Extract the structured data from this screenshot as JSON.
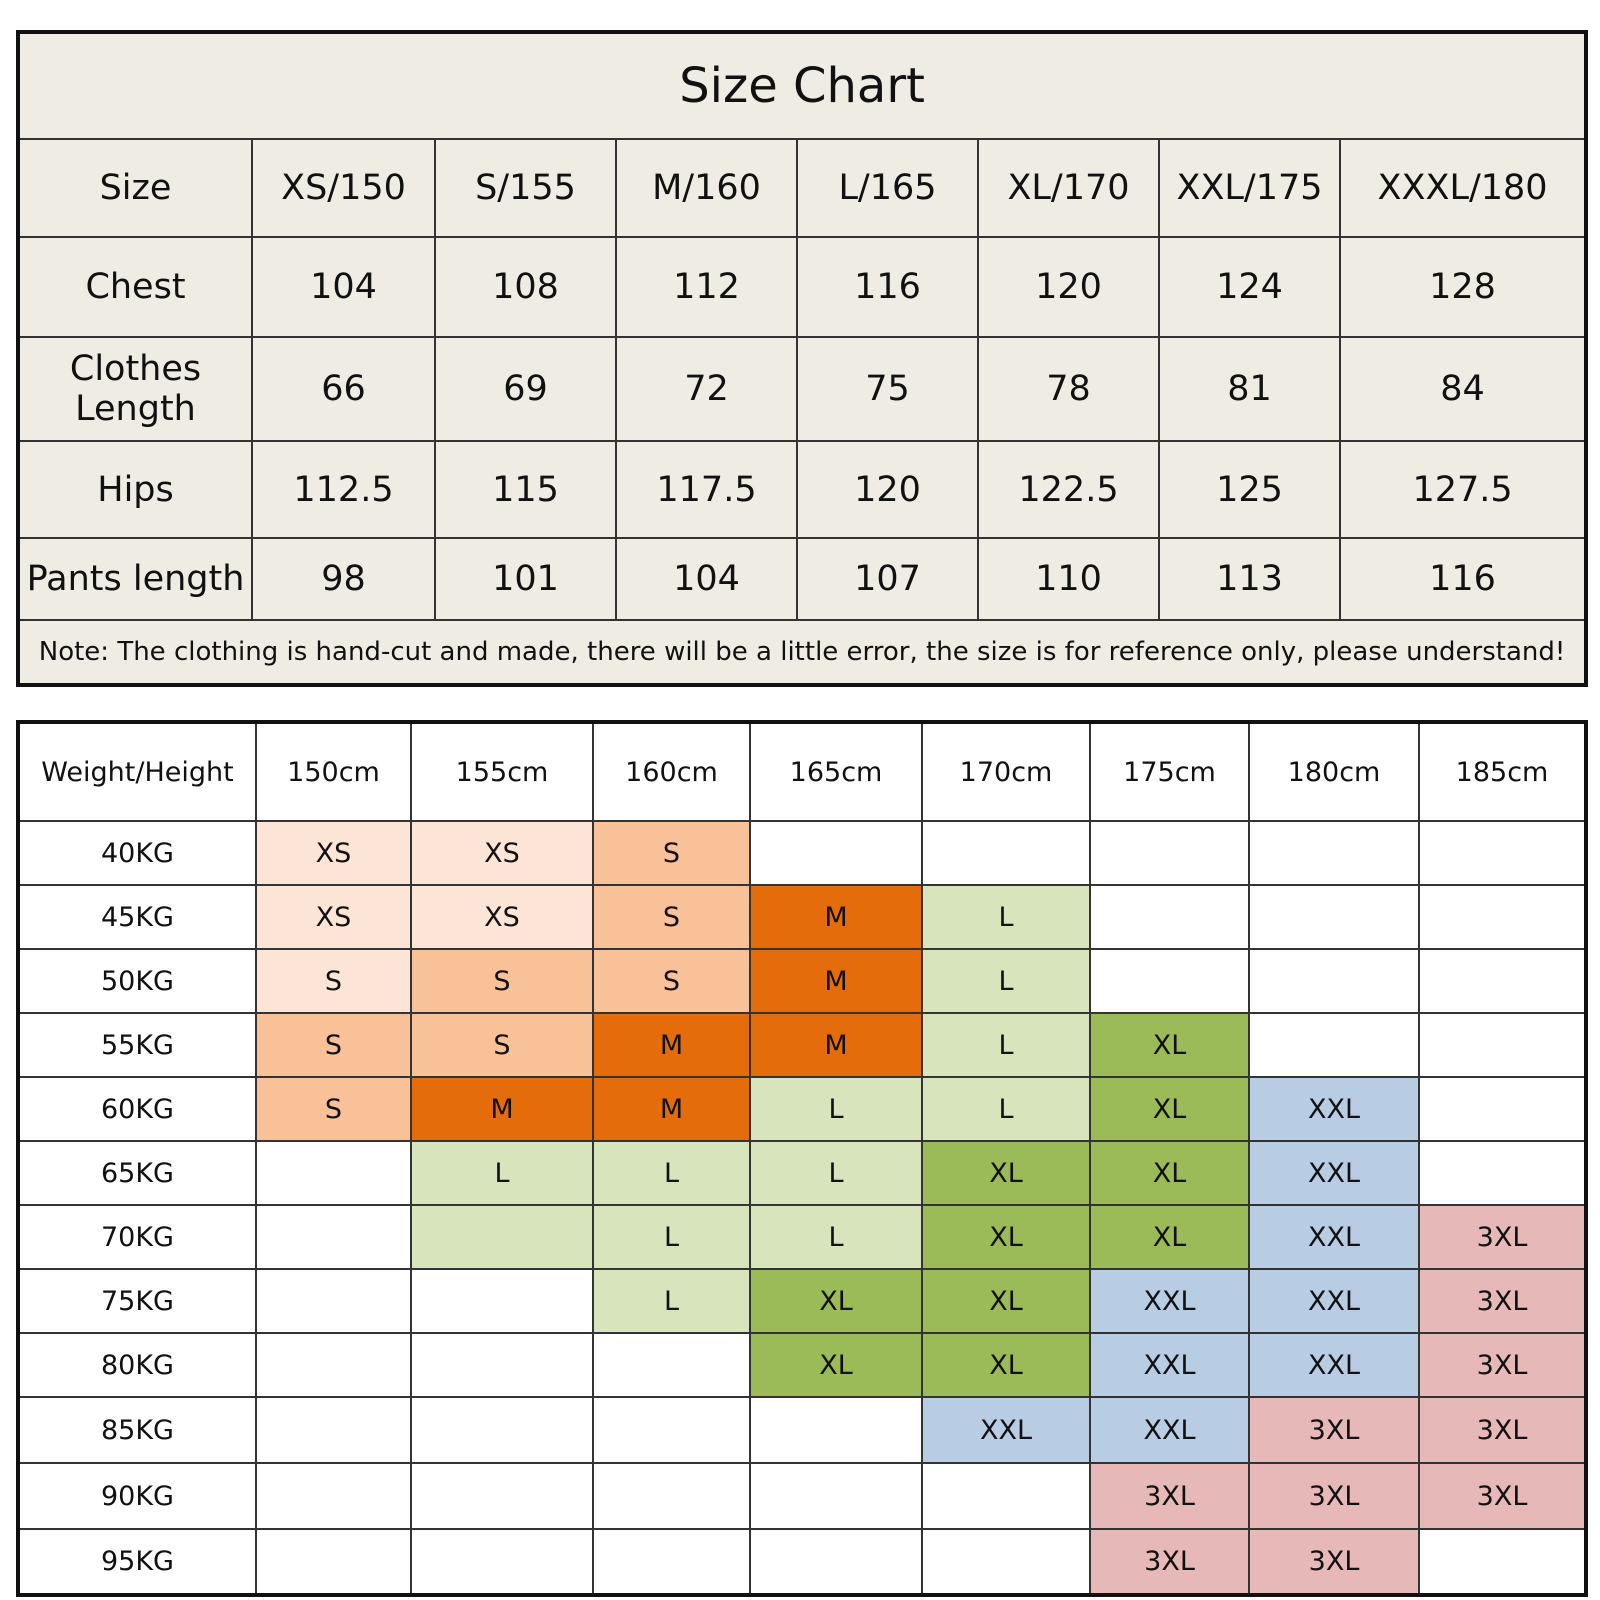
{
  "size_chart": {
    "title": "Size Chart",
    "header": {
      "label": "Size",
      "sizes": [
        "XS/150",
        "S/155",
        "M/160",
        "L/165",
        "XL/170",
        "XXL/175",
        "XXXL/180"
      ]
    },
    "rows": [
      {
        "label": "Chest",
        "values": [
          104,
          108,
          112,
          116,
          120,
          124,
          128
        ]
      },
      {
        "label": "Clothes Length",
        "values": [
          66,
          69,
          72,
          75,
          78,
          81,
          84
        ]
      },
      {
        "label": "Hips",
        "values": [
          112.5,
          115,
          117.5,
          120,
          122.5,
          125,
          127.5
        ]
      },
      {
        "label": "Pants length",
        "values": [
          98,
          101,
          104,
          107,
          110,
          113,
          116
        ]
      }
    ],
    "note": "Note: The clothing is hand-cut and made, there will be a little error, the size is for reference only, please understand!"
  },
  "fit_table": {
    "header": {
      "label": "Weight/Height",
      "heights": [
        "150cm",
        "155cm",
        "160cm",
        "165cm",
        "170cm",
        "175cm",
        "180cm",
        "185cm"
      ]
    },
    "rows": [
      {
        "label": "40KG",
        "cells": [
          {
            "size": "XS",
            "color": "#fce4d6"
          },
          {
            "size": "XS",
            "color": "#fce4d6"
          },
          {
            "size": "S",
            "color": "#f8c197"
          },
          null,
          null,
          null,
          null,
          null
        ]
      },
      {
        "label": "45KG",
        "cells": [
          {
            "size": "XS",
            "color": "#fce4d6"
          },
          {
            "size": "XS",
            "color": "#fce4d6"
          },
          {
            "size": "S",
            "color": "#f8c197"
          },
          {
            "size": "M",
            "color": "#e46c0a"
          },
          {
            "size": "L",
            "color": "#d8e4bc"
          },
          null,
          null,
          null
        ]
      },
      {
        "label": "50KG",
        "cells": [
          {
            "size": "S",
            "color": "#fce4d6"
          },
          {
            "size": "S",
            "color": "#f8c197"
          },
          {
            "size": "S",
            "color": "#f8c197"
          },
          {
            "size": "M",
            "color": "#e46c0a"
          },
          {
            "size": "L",
            "color": "#d8e4bc"
          },
          null,
          null,
          null
        ]
      },
      {
        "label": "55KG",
        "cells": [
          {
            "size": "S",
            "color": "#f8c197"
          },
          {
            "size": "S",
            "color": "#f8c197"
          },
          {
            "size": "M",
            "color": "#e46c0a"
          },
          {
            "size": "M",
            "color": "#e46c0a"
          },
          {
            "size": "L",
            "color": "#d8e4bc"
          },
          {
            "size": "XL",
            "color": "#9bbb59"
          },
          null,
          null
        ]
      },
      {
        "label": "60KG",
        "cells": [
          {
            "size": "S",
            "color": "#f8c197"
          },
          {
            "size": "M",
            "color": "#e46c0a"
          },
          {
            "size": "M",
            "color": "#e46c0a"
          },
          {
            "size": "L",
            "color": "#d8e4bc"
          },
          {
            "size": "L",
            "color": "#d8e4bc"
          },
          {
            "size": "XL",
            "color": "#9bbb59"
          },
          {
            "size": "XXL",
            "color": "#b8cce4"
          },
          null
        ]
      },
      {
        "label": "65KG",
        "cells": [
          null,
          {
            "size": "L",
            "color": "#d8e4bc"
          },
          {
            "size": "L",
            "color": "#d8e4bc"
          },
          {
            "size": "L",
            "color": "#d8e4bc"
          },
          {
            "size": "XL",
            "color": "#9bbb59"
          },
          {
            "size": "XL",
            "color": "#9bbb59"
          },
          {
            "size": "XXL",
            "color": "#b8cce4"
          },
          null
        ]
      },
      {
        "label": "70KG",
        "cells": [
          null,
          {
            "color": "#d8e4bc"
          },
          {
            "size": "L",
            "color": "#d8e4bc"
          },
          {
            "size": "L",
            "color": "#d8e4bc"
          },
          {
            "size": "XL",
            "color": "#9bbb59"
          },
          {
            "size": "XL",
            "color": "#9bbb59"
          },
          {
            "size": "XXL",
            "color": "#b8cce4"
          },
          {
            "size": "3XL",
            "color": "#e6b8b7"
          }
        ]
      },
      {
        "label": "75KG",
        "cells": [
          null,
          null,
          {
            "size": "L",
            "color": "#d8e4bc"
          },
          {
            "size": "XL",
            "color": "#9bbb59"
          },
          {
            "size": "XL",
            "color": "#9bbb59"
          },
          {
            "size": "XXL",
            "color": "#b8cce4"
          },
          {
            "size": "XXL",
            "color": "#b8cce4"
          },
          {
            "size": "3XL",
            "color": "#e6b8b7"
          }
        ]
      },
      {
        "label": "80KG",
        "cells": [
          null,
          null,
          null,
          {
            "size": "XL",
            "color": "#9bbb59"
          },
          {
            "size": "XL",
            "color": "#9bbb59"
          },
          {
            "size": "XXL",
            "color": "#b8cce4"
          },
          {
            "size": "XXL",
            "color": "#b8cce4"
          },
          {
            "size": "3XL",
            "color": "#e6b8b7"
          }
        ]
      },
      {
        "label": "85KG",
        "cells": [
          null,
          null,
          null,
          null,
          {
            "size": "XXL",
            "color": "#b8cce4"
          },
          {
            "size": "XXL",
            "color": "#b8cce4"
          },
          {
            "size": "3XL",
            "color": "#e6b8b7"
          },
          {
            "size": "3XL",
            "color": "#e6b8b7"
          }
        ]
      },
      {
        "label": "90KG",
        "cells": [
          null,
          null,
          null,
          null,
          null,
          {
            "size": "3XL",
            "color": "#e6b8b7"
          },
          {
            "size": "3XL",
            "color": "#e6b8b7"
          },
          {
            "size": "3XL",
            "color": "#e6b8b7"
          }
        ]
      },
      {
        "label": "95KG",
        "cells": [
          null,
          null,
          null,
          null,
          null,
          {
            "size": "3XL",
            "color": "#e6b8b7"
          },
          {
            "size": "3XL",
            "color": "#e6b8b7"
          },
          null
        ]
      }
    ]
  }
}
